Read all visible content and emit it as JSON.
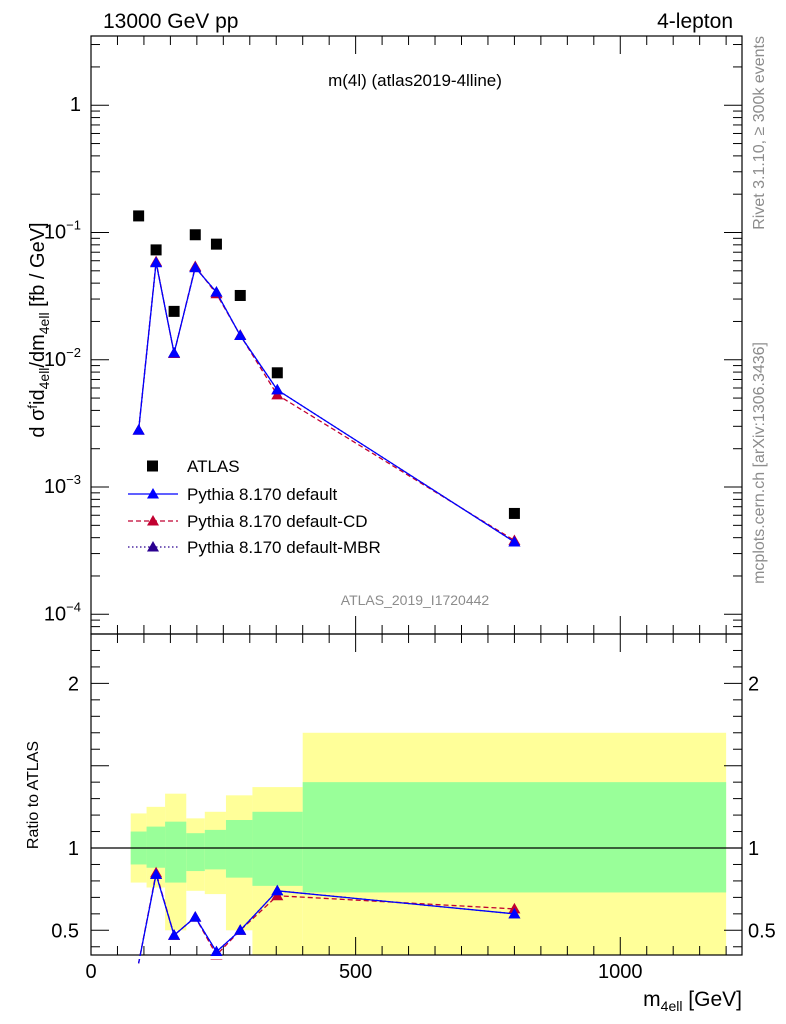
{
  "header": {
    "energy_label": "13000 GeV pp",
    "process_label": "4-lepton"
  },
  "side_labels": {
    "rivet": "Rivet 3.1.10, ≥ 300k events",
    "site": "mcplots.cern.ch [arXiv:1306.3436]"
  },
  "chart_data": [
    {
      "type": "scatter",
      "title": "m(4l) (atlas2019-4lline)",
      "watermark": "ATLAS_2019_I1720442",
      "xlabel": "m_4ell [GeV]",
      "ylabel": "d σ^{fid}_{4ell}/dm_{4ell} [fb / GeV]",
      "yscale": "log",
      "xlim": [
        0,
        1230
      ],
      "ylim": [
        7e-05,
        3.5
      ],
      "ytick_labels": [
        "10^-4",
        "10^-3",
        "10^-2",
        "10^-1",
        "1"
      ],
      "legend_position": "middle-left",
      "series": [
        {
          "name": "ATLAS",
          "marker": "square",
          "color": "#000000",
          "x": [
            90,
            123,
            157,
            197,
            237,
            282,
            352,
            800
          ],
          "y": [
            0.135,
            0.073,
            0.024,
            0.096,
            0.081,
            0.032,
            0.0079,
            0.00062
          ]
        },
        {
          "name": "Pythia 8.170 default",
          "marker": "triangle",
          "line": "solid",
          "color": "#0000ff",
          "x": [
            90,
            123,
            157,
            197,
            237,
            282,
            352,
            800
          ],
          "y": [
            0.0028,
            0.058,
            0.0113,
            0.053,
            0.034,
            0.0155,
            0.0058,
            0.00037
          ]
        },
        {
          "name": "Pythia 8.170 default-CD",
          "marker": "triangle",
          "line": "dashed",
          "color": "#c10030",
          "x": [
            90,
            123,
            157,
            197,
            237,
            282,
            352,
            800
          ],
          "y": [
            0.0028,
            0.059,
            0.0112,
            0.054,
            0.033,
            0.0156,
            0.0053,
            0.00038
          ]
        },
        {
          "name": "Pythia 8.170 default-MBR",
          "marker": "triangle",
          "line": "dotted",
          "color": "#2a0090",
          "x": [
            90,
            123,
            157,
            197,
            237,
            282,
            352,
            800
          ],
          "y": [
            0.0028,
            0.058,
            0.0113,
            0.053,
            0.034,
            0.0155,
            0.0058,
            0.00037
          ]
        }
      ]
    },
    {
      "type": "line",
      "ylabel": "Ratio to ATLAS",
      "xlabel": "m_4ell [GeV]",
      "xlim": [
        0,
        1230
      ],
      "ylim": [
        0.35,
        2.3
      ],
      "xticks": [
        0,
        500,
        1000
      ],
      "xtick_labels": [
        "0",
        "500",
        "1000"
      ],
      "yticks": [
        0.5,
        1,
        2
      ],
      "ytick_labels": [
        "0.5",
        "1",
        "2"
      ],
      "bands": {
        "edges": [
          75,
          105,
          140,
          180,
          215,
          255,
          305,
          400,
          1200
        ],
        "stat_lo": [
          0.9,
          0.88,
          0.79,
          0.86,
          0.87,
          0.82,
          0.77,
          0.73
        ],
        "stat_hi": [
          1.1,
          1.13,
          1.16,
          1.09,
          1.11,
          1.17,
          1.22,
          1.4
        ],
        "total_lo": [
          0.79,
          0.76,
          0.5,
          0.74,
          0.72,
          0.5,
          0.35,
          0.35
        ],
        "total_hi": [
          1.21,
          1.25,
          1.33,
          1.18,
          1.22,
          1.32,
          1.37,
          1.7
        ],
        "stat_color": "#99ff99",
        "total_color": "#ffff99"
      },
      "series": [
        {
          "name": "Pythia 8.170 default",
          "color": "#0000ff",
          "line": "solid",
          "x": [
            90,
            123,
            157,
            197,
            237,
            282,
            352,
            800
          ],
          "y": [
            0.02,
            0.84,
            0.47,
            0.58,
            0.37,
            0.5,
            0.74,
            0.6
          ]
        },
        {
          "name": "Pythia 8.170 default-CD",
          "color": "#c10030",
          "line": "dashed",
          "x": [
            90,
            123,
            157,
            197,
            237,
            282,
            352,
            800
          ],
          "y": [
            0.02,
            0.85,
            0.47,
            0.58,
            0.35,
            0.5,
            0.71,
            0.63
          ]
        },
        {
          "name": "Pythia 8.170 default-MBR",
          "color": "#2a0090",
          "line": "dotted",
          "x": [
            90,
            123,
            157,
            197,
            237,
            282,
            352,
            800
          ],
          "y": [
            0.02,
            0.84,
            0.47,
            0.58,
            0.37,
            0.5,
            0.74,
            0.6
          ]
        }
      ]
    }
  ]
}
